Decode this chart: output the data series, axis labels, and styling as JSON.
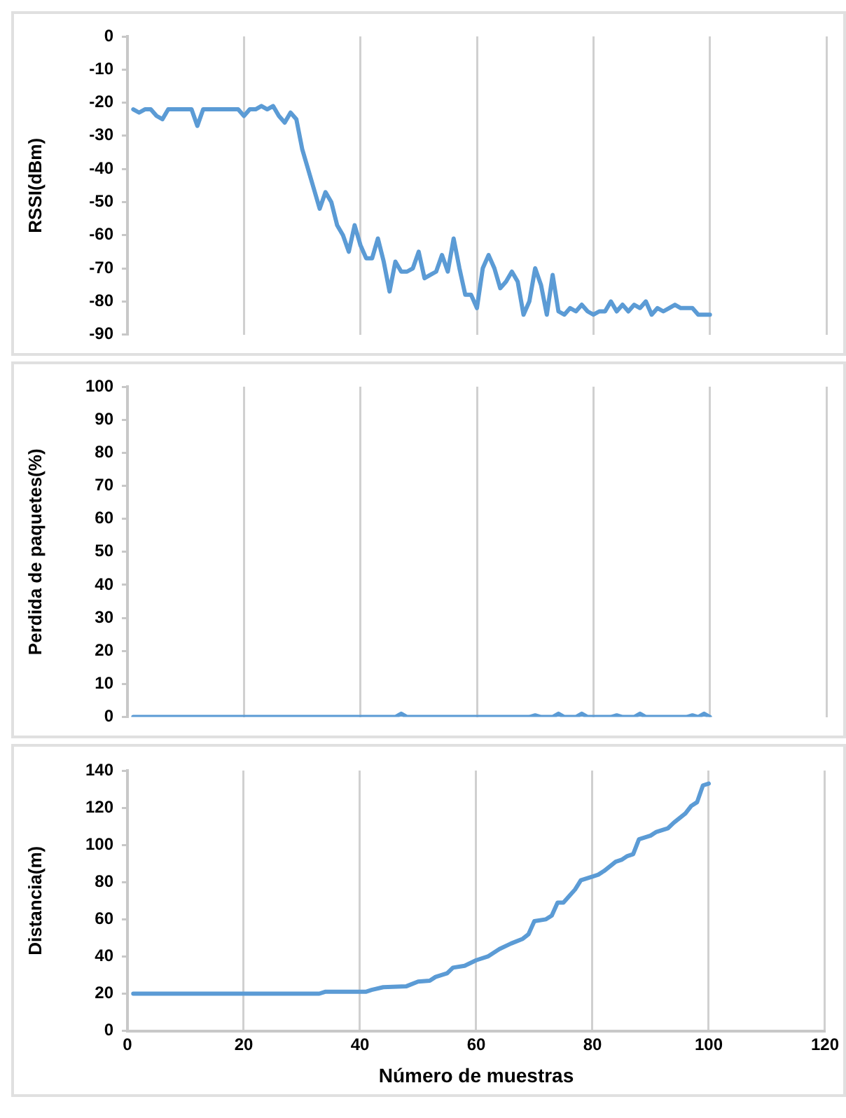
{
  "chart_data": [
    {
      "type": "line",
      "ylabel": "RSSI(dBm)",
      "xlim": [
        0,
        120
      ],
      "xticks": [
        0,
        20,
        40,
        60,
        80,
        100,
        120
      ],
      "ylim": [
        -90,
        0
      ],
      "yticks": [
        -90,
        -80,
        -70,
        -60,
        -50,
        -40,
        -30,
        -20,
        -10,
        0
      ],
      "grid": "x",
      "tick_labels": "y",
      "marker": "none",
      "series": [
        {
          "color": "#5b9bd5",
          "x": [
            1,
            2,
            3,
            4,
            5,
            6,
            7,
            8,
            9,
            10,
            11,
            12,
            13,
            14,
            15,
            16,
            17,
            18,
            19,
            20,
            21,
            22,
            23,
            24,
            25,
            26,
            27,
            28,
            29,
            30,
            31,
            32,
            33,
            34,
            35,
            36,
            37,
            38,
            39,
            40,
            41,
            42,
            43,
            44,
            45,
            46,
            47,
            48,
            49,
            50,
            51,
            52,
            53,
            54,
            55,
            56,
            57,
            58,
            59,
            60,
            61,
            62,
            63,
            64,
            65,
            66,
            67,
            68,
            69,
            70,
            71,
            72,
            73,
            74,
            75,
            76,
            77,
            78,
            79,
            80,
            81,
            82,
            83,
            84,
            85,
            86,
            87,
            88,
            89,
            90,
            91,
            92,
            93,
            94,
            95,
            96,
            97,
            98,
            99,
            100
          ],
          "values": [
            -22,
            -23,
            -22,
            -22,
            -24,
            -25,
            -22,
            -22,
            -22,
            -22,
            -22,
            -27,
            -22,
            -22,
            -22,
            -22,
            -22,
            -22,
            -22,
            -24,
            -22,
            -22,
            -21,
            -22,
            -21,
            -24,
            -26,
            -23,
            -25,
            -34,
            -40,
            -46,
            -52,
            -47,
            -50,
            -57,
            -60,
            -65,
            -57,
            -63,
            -67,
            -67,
            -61,
            -68,
            -77,
            -68,
            -71,
            -71,
            -70,
            -65,
            -73,
            -72,
            -71,
            -66,
            -71,
            -61,
            -70,
            -78,
            -78,
            -82,
            -70,
            -66,
            -70,
            -76,
            -74,
            -71,
            -74,
            -84,
            -80,
            -70,
            -75,
            -84,
            -72,
            -83,
            -84,
            -82,
            -83,
            -81,
            -83,
            -84,
            -83,
            -83,
            -80,
            -83,
            -81,
            -83,
            -81,
            -82,
            -80,
            -84,
            -82,
            -83,
            -82,
            -81,
            -82,
            -82,
            -82,
            -84,
            -84,
            -84
          ]
        }
      ]
    },
    {
      "type": "line",
      "ylabel": "Perdida de paquetes(%)",
      "xlim": [
        0,
        120
      ],
      "xticks": [
        0,
        20,
        40,
        60,
        80,
        100,
        120
      ],
      "ylim": [
        0,
        100
      ],
      "yticks": [
        0,
        10,
        20,
        30,
        40,
        50,
        60,
        70,
        80,
        90,
        100
      ],
      "grid": "x",
      "tick_labels": "y",
      "marker": "none",
      "series": [
        {
          "color": "#5b9bd5",
          "x": [
            1,
            46,
            47,
            48,
            69,
            70,
            71,
            73,
            74,
            75,
            77,
            78,
            79,
            83,
            84,
            85,
            87,
            88,
            89,
            96,
            97,
            98,
            99,
            100
          ],
          "values": [
            0,
            0,
            1,
            0,
            0,
            0.5,
            0,
            0,
            1,
            0,
            0,
            1,
            0,
            0,
            0.5,
            0,
            0,
            1,
            0,
            0,
            0.5,
            0,
            1,
            0
          ]
        }
      ]
    },
    {
      "type": "line",
      "xlabel": "Número de muestras",
      "ylabel": "Distancia(m)",
      "xlim": [
        0,
        120
      ],
      "xticks": [
        0,
        20,
        40,
        60,
        80,
        100,
        120
      ],
      "ylim": [
        0,
        140
      ],
      "yticks": [
        0,
        20,
        40,
        60,
        80,
        100,
        120,
        140
      ],
      "grid": "x",
      "marker": "none",
      "series": [
        {
          "color": "#5b9bd5",
          "x": [
            1,
            33,
            34,
            41,
            42,
            44,
            48,
            50,
            52,
            53,
            55,
            56,
            58,
            60,
            62,
            64,
            66,
            68,
            69,
            70,
            72,
            73,
            74,
            75,
            77,
            78,
            80,
            81,
            82,
            84,
            85,
            86,
            87,
            88,
            90,
            91,
            93,
            94,
            96,
            97,
            98,
            99,
            100
          ],
          "values": [
            20,
            20,
            21,
            21,
            22,
            23.5,
            24,
            26.5,
            27,
            29,
            31,
            34,
            35,
            38,
            40,
            44,
            47,
            49.5,
            52,
            59,
            60,
            62,
            69,
            69,
            76,
            81,
            83,
            84,
            86,
            91,
            92,
            94,
            95,
            103,
            105,
            107,
            109,
            112,
            117,
            121,
            123,
            132,
            133
          ]
        }
      ]
    }
  ]
}
